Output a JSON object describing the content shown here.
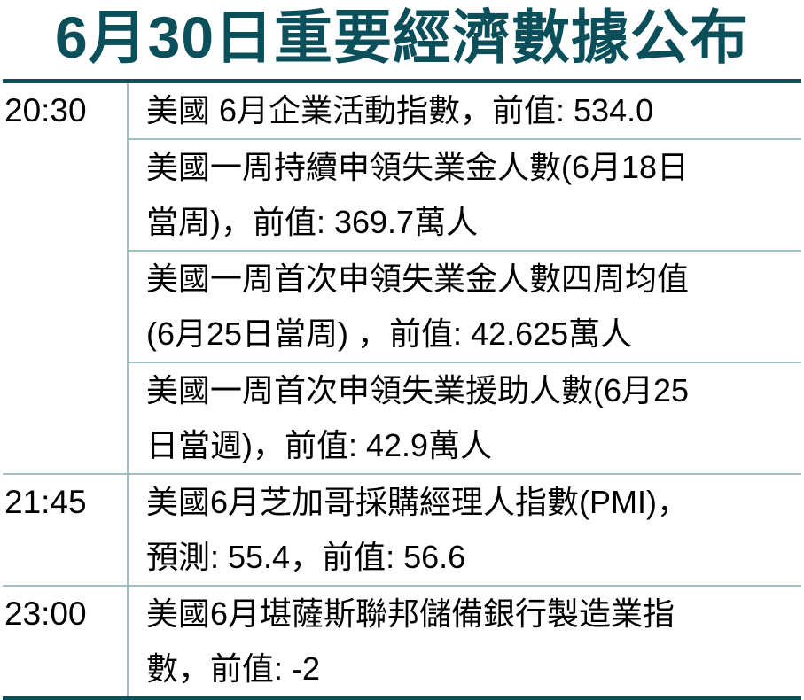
{
  "title": "6月30日重要經濟數據公布",
  "colors": {
    "accent": "#0b4f5a",
    "divider": "#9fbfc5"
  },
  "groups": [
    {
      "time": "20:30",
      "items": [
        [
          "美國 6月企業活動指數，前值: 534.0"
        ],
        [
          "美國一周持續申領失業金人數(6月18日",
          "當周)，前值: 369.7萬人"
        ],
        [
          "美國一周首次申領失業金人數四周均值",
          "(6月25日當周) ，前值: 42.625萬人"
        ],
        [
          "美國一周首次申領失業援助人數(6月25",
          "日當週)，前值: 42.9萬人"
        ]
      ]
    },
    {
      "time": "21:45",
      "items": [
        [
          "美國6月芝加哥採購經理人指數(PMI)，",
          "預測: 55.4，前值: 56.6"
        ]
      ]
    },
    {
      "time": "23:00",
      "items": [
        [
          "美國6月堪薩斯聯邦儲備銀行製造業指",
          "數，前值: -2"
        ]
      ]
    }
  ]
}
